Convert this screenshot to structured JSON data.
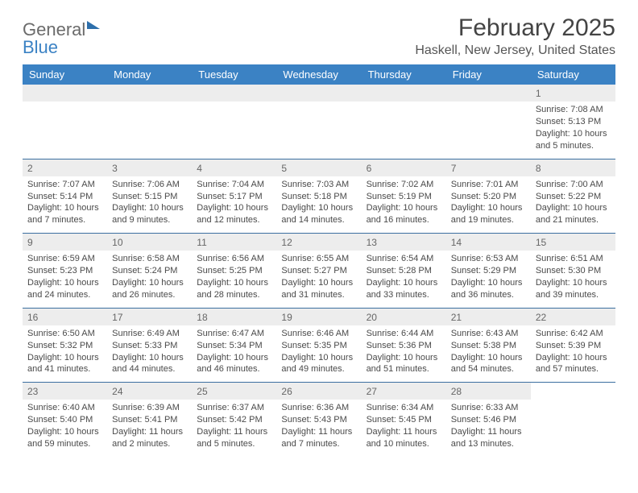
{
  "logo": {
    "general": "General",
    "blue": "Blue"
  },
  "title": "February 2025",
  "location": "Haskell, New Jersey, United States",
  "day_headers": [
    "Sunday",
    "Monday",
    "Tuesday",
    "Wednesday",
    "Thursday",
    "Friday",
    "Saturday"
  ],
  "colors": {
    "header_bg": "#3b82c4",
    "header_text": "#ffffff",
    "rule": "#3b6fa0",
    "daynum_bg": "#ededed",
    "body_text": "#4a4a4a",
    "page_bg": "#ffffff"
  },
  "weeks": [
    [
      null,
      null,
      null,
      null,
      null,
      null,
      {
        "n": "1",
        "sunrise": "Sunrise: 7:08 AM",
        "sunset": "Sunset: 5:13 PM",
        "day1": "Daylight: 10 hours",
        "day2": "and 5 minutes."
      }
    ],
    [
      {
        "n": "2",
        "sunrise": "Sunrise: 7:07 AM",
        "sunset": "Sunset: 5:14 PM",
        "day1": "Daylight: 10 hours",
        "day2": "and 7 minutes."
      },
      {
        "n": "3",
        "sunrise": "Sunrise: 7:06 AM",
        "sunset": "Sunset: 5:15 PM",
        "day1": "Daylight: 10 hours",
        "day2": "and 9 minutes."
      },
      {
        "n": "4",
        "sunrise": "Sunrise: 7:04 AM",
        "sunset": "Sunset: 5:17 PM",
        "day1": "Daylight: 10 hours",
        "day2": "and 12 minutes."
      },
      {
        "n": "5",
        "sunrise": "Sunrise: 7:03 AM",
        "sunset": "Sunset: 5:18 PM",
        "day1": "Daylight: 10 hours",
        "day2": "and 14 minutes."
      },
      {
        "n": "6",
        "sunrise": "Sunrise: 7:02 AM",
        "sunset": "Sunset: 5:19 PM",
        "day1": "Daylight: 10 hours",
        "day2": "and 16 minutes."
      },
      {
        "n": "7",
        "sunrise": "Sunrise: 7:01 AM",
        "sunset": "Sunset: 5:20 PM",
        "day1": "Daylight: 10 hours",
        "day2": "and 19 minutes."
      },
      {
        "n": "8",
        "sunrise": "Sunrise: 7:00 AM",
        "sunset": "Sunset: 5:22 PM",
        "day1": "Daylight: 10 hours",
        "day2": "and 21 minutes."
      }
    ],
    [
      {
        "n": "9",
        "sunrise": "Sunrise: 6:59 AM",
        "sunset": "Sunset: 5:23 PM",
        "day1": "Daylight: 10 hours",
        "day2": "and 24 minutes."
      },
      {
        "n": "10",
        "sunrise": "Sunrise: 6:58 AM",
        "sunset": "Sunset: 5:24 PM",
        "day1": "Daylight: 10 hours",
        "day2": "and 26 minutes."
      },
      {
        "n": "11",
        "sunrise": "Sunrise: 6:56 AM",
        "sunset": "Sunset: 5:25 PM",
        "day1": "Daylight: 10 hours",
        "day2": "and 28 minutes."
      },
      {
        "n": "12",
        "sunrise": "Sunrise: 6:55 AM",
        "sunset": "Sunset: 5:27 PM",
        "day1": "Daylight: 10 hours",
        "day2": "and 31 minutes."
      },
      {
        "n": "13",
        "sunrise": "Sunrise: 6:54 AM",
        "sunset": "Sunset: 5:28 PM",
        "day1": "Daylight: 10 hours",
        "day2": "and 33 minutes."
      },
      {
        "n": "14",
        "sunrise": "Sunrise: 6:53 AM",
        "sunset": "Sunset: 5:29 PM",
        "day1": "Daylight: 10 hours",
        "day2": "and 36 minutes."
      },
      {
        "n": "15",
        "sunrise": "Sunrise: 6:51 AM",
        "sunset": "Sunset: 5:30 PM",
        "day1": "Daylight: 10 hours",
        "day2": "and 39 minutes."
      }
    ],
    [
      {
        "n": "16",
        "sunrise": "Sunrise: 6:50 AM",
        "sunset": "Sunset: 5:32 PM",
        "day1": "Daylight: 10 hours",
        "day2": "and 41 minutes."
      },
      {
        "n": "17",
        "sunrise": "Sunrise: 6:49 AM",
        "sunset": "Sunset: 5:33 PM",
        "day1": "Daylight: 10 hours",
        "day2": "and 44 minutes."
      },
      {
        "n": "18",
        "sunrise": "Sunrise: 6:47 AM",
        "sunset": "Sunset: 5:34 PM",
        "day1": "Daylight: 10 hours",
        "day2": "and 46 minutes."
      },
      {
        "n": "19",
        "sunrise": "Sunrise: 6:46 AM",
        "sunset": "Sunset: 5:35 PM",
        "day1": "Daylight: 10 hours",
        "day2": "and 49 minutes."
      },
      {
        "n": "20",
        "sunrise": "Sunrise: 6:44 AM",
        "sunset": "Sunset: 5:36 PM",
        "day1": "Daylight: 10 hours",
        "day2": "and 51 minutes."
      },
      {
        "n": "21",
        "sunrise": "Sunrise: 6:43 AM",
        "sunset": "Sunset: 5:38 PM",
        "day1": "Daylight: 10 hours",
        "day2": "and 54 minutes."
      },
      {
        "n": "22",
        "sunrise": "Sunrise: 6:42 AM",
        "sunset": "Sunset: 5:39 PM",
        "day1": "Daylight: 10 hours",
        "day2": "and 57 minutes."
      }
    ],
    [
      {
        "n": "23",
        "sunrise": "Sunrise: 6:40 AM",
        "sunset": "Sunset: 5:40 PM",
        "day1": "Daylight: 10 hours",
        "day2": "and 59 minutes."
      },
      {
        "n": "24",
        "sunrise": "Sunrise: 6:39 AM",
        "sunset": "Sunset: 5:41 PM",
        "day1": "Daylight: 11 hours",
        "day2": "and 2 minutes."
      },
      {
        "n": "25",
        "sunrise": "Sunrise: 6:37 AM",
        "sunset": "Sunset: 5:42 PM",
        "day1": "Daylight: 11 hours",
        "day2": "and 5 minutes."
      },
      {
        "n": "26",
        "sunrise": "Sunrise: 6:36 AM",
        "sunset": "Sunset: 5:43 PM",
        "day1": "Daylight: 11 hours",
        "day2": "and 7 minutes."
      },
      {
        "n": "27",
        "sunrise": "Sunrise: 6:34 AM",
        "sunset": "Sunset: 5:45 PM",
        "day1": "Daylight: 11 hours",
        "day2": "and 10 minutes."
      },
      {
        "n": "28",
        "sunrise": "Sunrise: 6:33 AM",
        "sunset": "Sunset: 5:46 PM",
        "day1": "Daylight: 11 hours",
        "day2": "and 13 minutes."
      },
      null
    ]
  ]
}
